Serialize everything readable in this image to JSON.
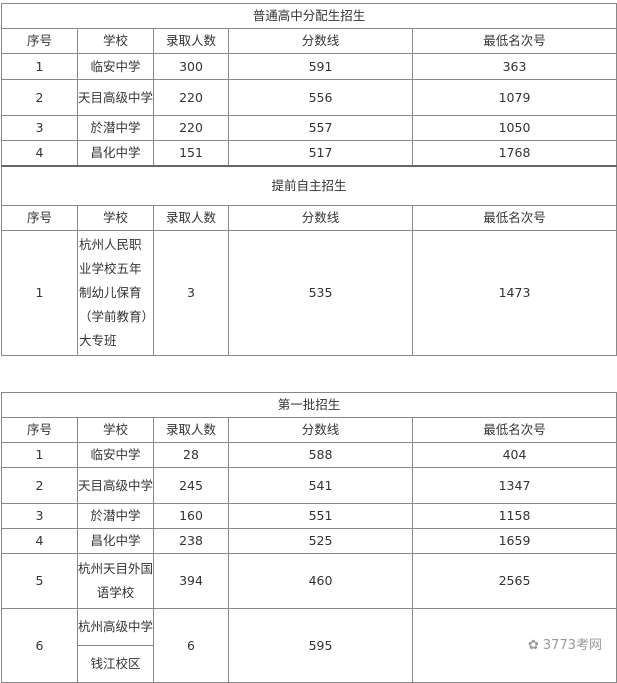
{
  "headers": [
    "序号",
    "学校",
    "录取人数",
    "分数线",
    "最低名次号"
  ],
  "sections": [
    {
      "title": "普通高中分配生招生",
      "rows": [
        [
          "1",
          "临安中学",
          "300",
          "591",
          "363"
        ],
        [
          "2",
          "天目高级中学",
          "220",
          "556",
          "1079"
        ],
        [
          "3",
          "於潜中学",
          "220",
          "557",
          "1050"
        ],
        [
          "4",
          "昌化中学",
          "151",
          "517",
          "1768"
        ]
      ]
    },
    {
      "title": "提前自主招生",
      "rows": [
        [
          "1",
          "杭州人民职业学校五年制幼儿保育（学前教育）大专班",
          "3",
          "535",
          "1473"
        ]
      ]
    },
    {
      "title": "第一批招生",
      "rows": [
        [
          "1",
          "临安中学",
          "28",
          "588",
          "404"
        ],
        [
          "2",
          "天目高级中学",
          "245",
          "541",
          "1347"
        ],
        [
          "3",
          "於潜中学",
          "160",
          "551",
          "1158"
        ],
        [
          "4",
          "昌化中学",
          "238",
          "525",
          "1659"
        ],
        [
          "5",
          "杭州天目外国语学校",
          "394",
          "460",
          "2565"
        ]
      ],
      "last_row": {
        "no": "6",
        "school_line1": "杭州高级中学",
        "school_line2": "钱江校区",
        "count": "6",
        "score": "595",
        "rank": ""
      }
    }
  ],
  "watermark": {
    "text": "3773考网",
    "icon": "wechat-icon"
  }
}
